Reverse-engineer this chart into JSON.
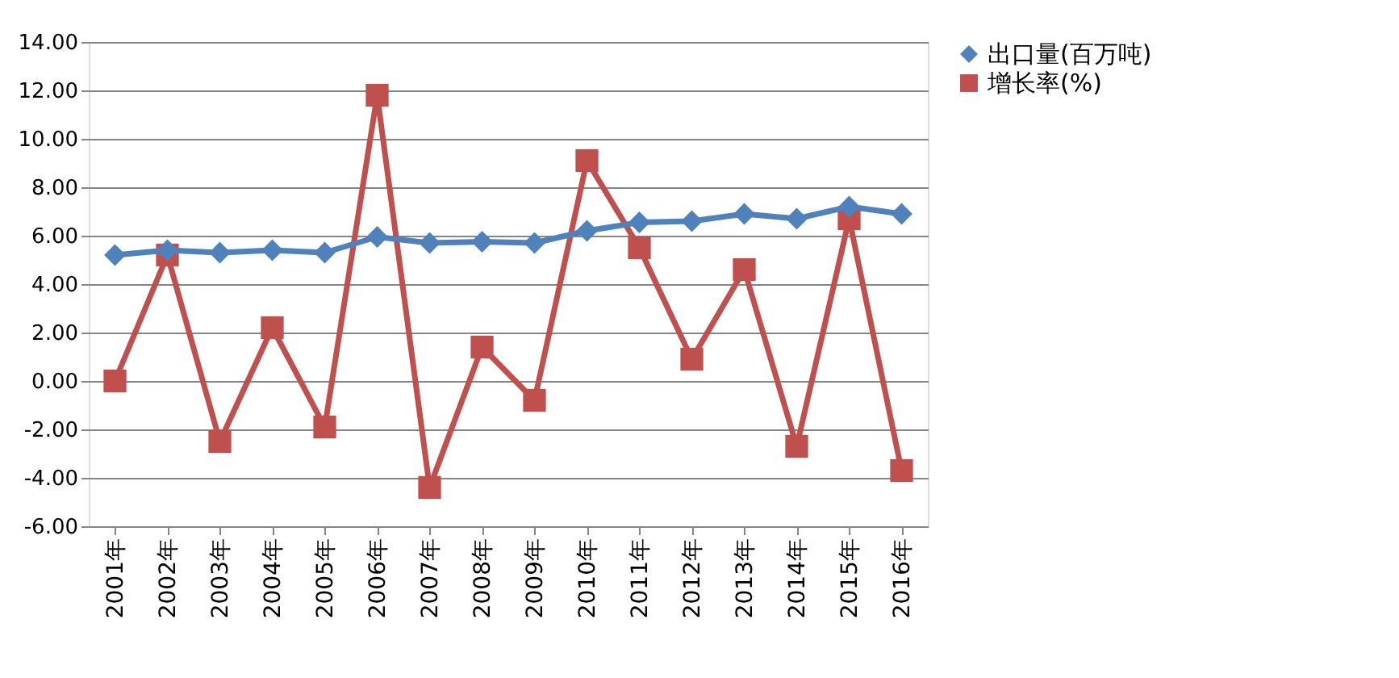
{
  "chart_data": {
    "type": "line",
    "categories": [
      "2001年",
      "2002年",
      "2003年",
      "2004年",
      "2005年",
      "2006年",
      "2007年",
      "2008年",
      "2009年",
      "2010年",
      "2011年",
      "2012年",
      "2013年",
      "2014年",
      "2015年",
      "2016年"
    ],
    "series": [
      {
        "name": "出口量(百万吨)",
        "color": "#4f81bd",
        "marker": "diamond",
        "values": [
          5.2,
          5.4,
          5.3,
          5.4,
          5.3,
          5.95,
          5.7,
          5.75,
          5.7,
          6.2,
          6.55,
          6.6,
          6.9,
          6.7,
          7.2,
          6.9
        ]
      },
      {
        "name": "增长率(%)",
        "color": "#c0504d",
        "marker": "square",
        "values": [
          0.0,
          5.2,
          -2.5,
          2.2,
          -1.9,
          11.8,
          -4.4,
          1.4,
          -0.8,
          9.1,
          5.5,
          0.9,
          4.6,
          -2.7,
          6.7,
          -3.7
        ]
      }
    ],
    "ylim": [
      -6,
      14
    ],
    "yticks": [
      {
        "value": -6,
        "label": "-6.00"
      },
      {
        "value": -4,
        "label": "-4.00"
      },
      {
        "value": -2,
        "label": "-2.00"
      },
      {
        "value": 0,
        "label": "0.00"
      },
      {
        "value": 2,
        "label": "2.00"
      },
      {
        "value": 4,
        "label": "4.00"
      },
      {
        "value": 6,
        "label": "6.00"
      },
      {
        "value": 8,
        "label": "8.00"
      },
      {
        "value": 10,
        "label": "10.00"
      },
      {
        "value": 12,
        "label": "12.00"
      },
      {
        "value": 14,
        "label": "14.00"
      }
    ],
    "grid": "y",
    "legend": "right",
    "line_style": "solid"
  }
}
